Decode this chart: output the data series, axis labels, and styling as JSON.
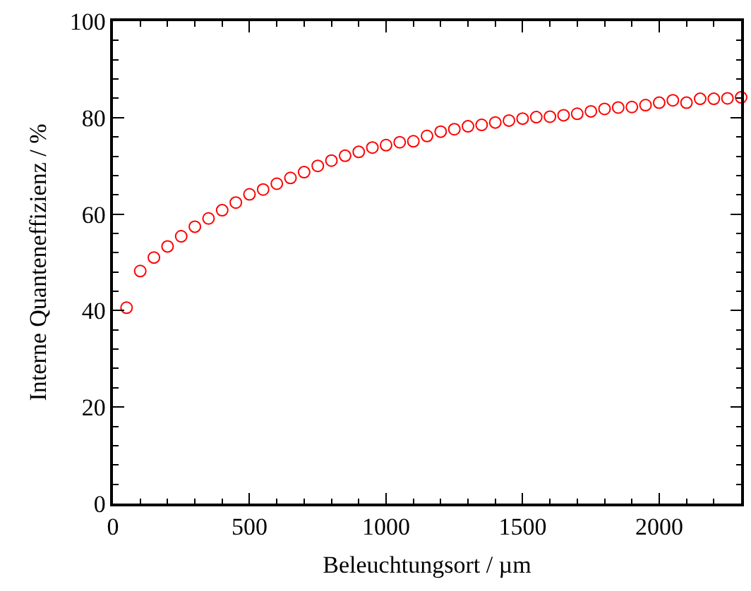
{
  "chart_data": {
    "type": "scatter",
    "xlabel": "Beleuchtungsort / µm",
    "ylabel": "Interne Quanteneffizienz / %",
    "marker": "circle",
    "grid": false,
    "x": [
      50,
      100,
      150,
      200,
      250,
      300,
      350,
      400,
      450,
      500,
      550,
      600,
      650,
      700,
      750,
      800,
      850,
      900,
      950,
      1000,
      1050,
      1100,
      1150,
      1200,
      1250,
      1300,
      1350,
      1400,
      1450,
      1500,
      1550,
      1600,
      1650,
      1700,
      1750,
      1800,
      1850,
      1900,
      1950,
      2000,
      2050,
      2100,
      2150,
      2200,
      2250,
      2300
    ],
    "series": [
      {
        "color": "#ff0000",
        "values": [
          40.6,
          48.2,
          51.0,
          53.3,
          55.4,
          57.4,
          59.1,
          60.8,
          62.4,
          64.1,
          65.1,
          66.3,
          67.5,
          68.7,
          70.0,
          71.1,
          72.1,
          72.9,
          73.8,
          74.3,
          74.9,
          75.1,
          76.2,
          77.1,
          77.6,
          78.2,
          78.5,
          79.0,
          79.4,
          79.8,
          80.1,
          80.2,
          80.5,
          80.8,
          81.3,
          81.8,
          82.1,
          82.2,
          82.6,
          83.1,
          83.6,
          83.1,
          83.9,
          83.9,
          84.0,
          84.2
        ]
      }
    ],
    "xlim": [
      0,
      2300
    ],
    "xticks": [
      0,
      {
        "value": 100,
        "label": null
      },
      {
        "value": 200,
        "label": null
      },
      {
        "value": 300,
        "label": null
      },
      {
        "value": 400,
        "label": null
      },
      500,
      {
        "value": 600,
        "label": null
      },
      {
        "value": 700,
        "label": null
      },
      {
        "value": 800,
        "label": null
      },
      {
        "value": 900,
        "label": null
      },
      1000,
      {
        "value": 1100,
        "label": null
      },
      {
        "value": 1200,
        "label": null
      },
      {
        "value": 1300,
        "label": null
      },
      {
        "value": 1400,
        "label": null
      },
      1500,
      {
        "value": 1600,
        "label": null
      },
      {
        "value": 1700,
        "label": null
      },
      {
        "value": 1800,
        "label": null
      },
      {
        "value": 1900,
        "label": null
      },
      2000,
      {
        "value": 2100,
        "label": null
      },
      {
        "value": 2200,
        "label": null
      }
    ],
    "ylim": [
      0,
      100
    ],
    "yticks": [
      0,
      {
        "value": 4,
        "label": null
      },
      {
        "value": 8,
        "label": null
      },
      {
        "value": 12,
        "label": null
      },
      {
        "value": 16,
        "label": null
      },
      20,
      {
        "value": 24,
        "label": null
      },
      {
        "value": 28,
        "label": null
      },
      {
        "value": 32,
        "label": null
      },
      {
        "value": 36,
        "label": null
      },
      40,
      {
        "value": 44,
        "label": null
      },
      {
        "value": 48,
        "label": null
      },
      {
        "value": 52,
        "label": null
      },
      {
        "value": 56,
        "label": null
      },
      60,
      {
        "value": 64,
        "label": null
      },
      {
        "value": 68,
        "label": null
      },
      {
        "value": 72,
        "label": null
      },
      {
        "value": 76,
        "label": null
      },
      80,
      {
        "value": 84,
        "label": null
      },
      {
        "value": 88,
        "label": null
      },
      {
        "value": 92,
        "label": null
      },
      {
        "value": 96,
        "label": null
      },
      100
    ]
  }
}
